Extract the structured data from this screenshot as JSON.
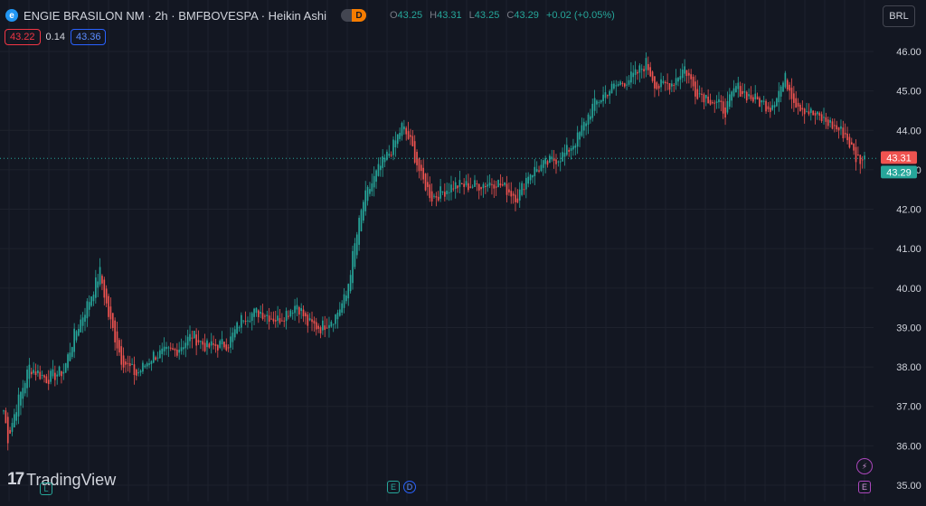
{
  "header": {
    "symbol_title": "ENGIE BRASILON NM · 2h · BMFBOVESPA · Heikin Ashi",
    "toggle_label": "D",
    "ohlc": {
      "o_label": "O",
      "o": "43.25",
      "h_label": "H",
      "h": "43.31",
      "l_label": "L",
      "l": "43.25",
      "c_label": "C",
      "c": "43.29",
      "change": "+0.02 (+0.05%)"
    }
  },
  "quote": {
    "bid": "43.22",
    "spread": "0.14",
    "ask": "43.36"
  },
  "currency": "BRL",
  "branding": {
    "name": "TradingView"
  },
  "events": {
    "earnings_label": "E",
    "dividend_label": "D",
    "lightning_label": "⚡",
    "l_label": "L"
  },
  "colors": {
    "background": "#131722",
    "grid": "#1e222d",
    "up": "#26a69a",
    "down": "#ef5350",
    "axis_text": "#d1d4dc",
    "price_line": "#26a69a"
  },
  "chart_data": {
    "type": "heikin-ashi-candlestick",
    "title": "ENGIE BRASILON NM · 2h · BMFBOVESPA · Heikin Ashi",
    "ylim": [
      34.9,
      46.3
    ],
    "y_ticks": [
      "46.00",
      "45.00",
      "44.00",
      "43.00",
      "42.00",
      "41.00",
      "40.00",
      "39.00",
      "38.00",
      "37.00",
      "36.00",
      "35.00"
    ],
    "y_tick_values": [
      46,
      45,
      44,
      43,
      42,
      41,
      40,
      39,
      38,
      37,
      36,
      35
    ],
    "last_price_labels": {
      "high": "43.31",
      "last": "43.29"
    },
    "grid": true,
    "anchors": [
      [
        0,
        36.9
      ],
      [
        2,
        36.2
      ],
      [
        6,
        37.0
      ],
      [
        12,
        38.0
      ],
      [
        20,
        37.7
      ],
      [
        28,
        37.9
      ],
      [
        33,
        38.8
      ],
      [
        40,
        39.7
      ],
      [
        45,
        40.4
      ],
      [
        49,
        39.3
      ],
      [
        55,
        38.2
      ],
      [
        62,
        37.8
      ],
      [
        70,
        38.3
      ],
      [
        80,
        38.4
      ],
      [
        88,
        38.8
      ],
      [
        95,
        38.5
      ],
      [
        105,
        38.6
      ],
      [
        112,
        39.3
      ],
      [
        120,
        39.4
      ],
      [
        128,
        39.2
      ],
      [
        137,
        39.6
      ],
      [
        142,
        39.1
      ],
      [
        148,
        39.0
      ],
      [
        155,
        39.3
      ],
      [
        160,
        39.8
      ],
      [
        163,
        40.8
      ],
      [
        168,
        42.2
      ],
      [
        175,
        43.0
      ],
      [
        182,
        43.6
      ],
      [
        186,
        44.1
      ],
      [
        190,
        43.7
      ],
      [
        195,
        42.8
      ],
      [
        200,
        42.3
      ],
      [
        210,
        42.6
      ],
      [
        220,
        42.6
      ],
      [
        230,
        42.7
      ],
      [
        240,
        42.3
      ],
      [
        245,
        42.9
      ],
      [
        255,
        43.2
      ],
      [
        262,
        43.4
      ],
      [
        268,
        43.8
      ],
      [
        275,
        44.6
      ],
      [
        282,
        45.0
      ],
      [
        288,
        45.2
      ],
      [
        295,
        45.4
      ],
      [
        300,
        45.7
      ],
      [
        305,
        45.1
      ],
      [
        312,
        45.2
      ],
      [
        318,
        45.6
      ],
      [
        323,
        45.0
      ],
      [
        330,
        44.8
      ],
      [
        337,
        44.5
      ],
      [
        342,
        45.1
      ],
      [
        350,
        44.8
      ],
      [
        358,
        44.6
      ],
      [
        365,
        45.3
      ],
      [
        370,
        44.7
      ],
      [
        378,
        44.4
      ],
      [
        385,
        44.2
      ],
      [
        393,
        43.9
      ],
      [
        398,
        43.3
      ],
      [
        402,
        43.27
      ]
    ]
  }
}
